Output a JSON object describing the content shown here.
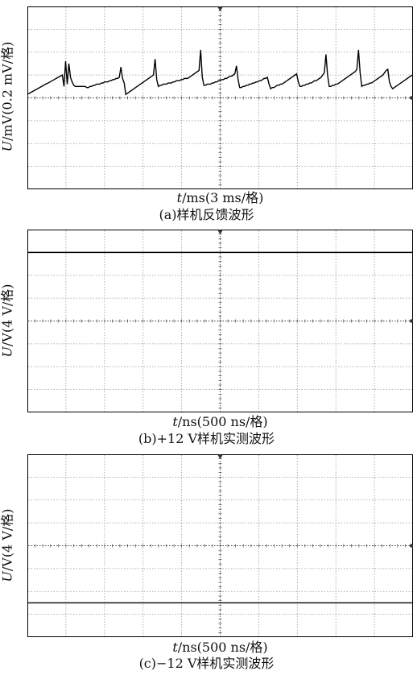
{
  "chart_data": [
    {
      "type": "line",
      "ylabel_var": "U",
      "ylabel_rest": "/mV(0.2 mV/格)",
      "xlabel_var": "t",
      "xlabel_rest": "/ms(3 ms/格)",
      "caption": "(a)样机反馈波形",
      "grid": true,
      "divisions": {
        "x": 10,
        "y": 8
      },
      "baseline_div": 4,
      "series": [
        {
          "values": [
            0.17,
            0.21,
            0.25,
            0.29,
            0.33,
            0.37,
            0.41,
            0.45,
            0.49,
            0.53,
            0.57,
            0.61,
            0.64,
            0.68,
            0.72,
            0.76,
            0.8,
            0.84,
            0.88,
            0.92,
            0.96,
            1.0,
            0.5,
            1.6,
            0.6,
            1.5,
            0.9,
            0.7,
            0.55,
            0.5,
            0.5,
            0.5,
            0.5,
            0.5,
            0.5,
            0.5,
            0.45,
            0.45,
            0.5,
            0.5,
            0.55,
            0.55,
            0.6,
            0.6,
            0.6,
            0.65,
            0.65,
            0.7,
            0.7,
            0.7,
            0.75,
            0.75,
            0.8,
            0.8,
            0.85,
            0.85,
            0.9,
            1.35,
            0.85,
            0.65,
            0.15,
            0.2,
            0.25,
            0.3,
            0.35,
            0.4,
            0.45,
            0.5,
            0.55,
            0.6,
            0.65,
            0.7,
            0.75,
            0.8,
            0.85,
            0.9,
            0.95,
            1.0,
            1.7,
            0.8,
            0.5,
            0.55,
            0.55,
            0.6,
            0.6,
            0.6,
            0.65,
            0.65,
            0.65,
            0.7,
            0.7,
            0.75,
            0.75,
            0.75,
            0.8,
            0.8,
            0.85,
            0.85,
            0.85,
            0.9,
            0.95,
            1.0,
            1.05,
            1.1,
            1.15,
            1.2,
            2.1,
            0.9,
            0.55,
            0.55,
            0.6,
            0.6,
            0.6,
            0.65,
            0.65,
            0.7,
            0.7,
            0.75,
            0.75,
            0.8,
            0.8,
            0.85,
            0.85,
            0.9,
            0.95,
            0.95,
            1.0,
            1.05,
            1.4,
            0.8,
            0.45,
            0.45,
            0.5,
            0.5,
            0.55,
            0.55,
            0.6,
            0.6,
            0.65,
            0.65,
            0.7,
            0.7,
            0.75,
            0.75,
            0.8,
            0.85,
            0.85,
            0.9,
            0.6,
            0.4,
            0.45,
            0.45,
            0.5,
            0.55,
            0.55,
            0.6,
            0.6,
            0.65,
            0.7,
            0.75,
            0.8,
            0.85,
            0.9,
            0.95,
            1.0,
            1.05,
            0.7,
            0.5,
            0.5,
            0.55,
            0.55,
            0.6,
            0.6,
            0.65,
            0.65,
            0.7,
            0.75,
            0.75,
            0.8,
            0.85,
            0.9,
            1.0,
            1.1,
            1.9,
            1.0,
            0.5,
            0.5,
            0.55,
            0.55,
            0.6,
            0.6,
            0.65,
            0.7,
            0.75,
            0.8,
            0.85,
            0.9,
            0.95,
            1.0,
            1.05,
            1.1,
            1.15,
            1.25,
            2.1,
            1.1,
            0.5,
            0.55,
            0.55,
            0.6,
            0.6,
            0.65,
            0.65,
            0.7,
            0.75,
            0.8,
            0.85,
            0.9,
            0.95,
            1.0,
            1.1,
            1.2,
            1.25,
            0.7,
            0.5,
            0.4,
            0.45,
            0.5,
            0.55,
            0.6,
            0.65,
            0.7,
            0.75,
            0.8,
            0.85,
            0.9,
            0.95,
            1.0
          ]
        }
      ]
    },
    {
      "type": "line",
      "ylabel_var": "U",
      "ylabel_rest": "/V(4 V/格)",
      "xlabel_var": "t",
      "xlabel_rest": "/ns(500 ns/格)",
      "caption": "(b)+12 V样机实测波形",
      "grid": true,
      "divisions": {
        "x": 10,
        "y": 8
      },
      "baseline_div": 4,
      "series": [
        {
          "values": [
            3.0,
            3.0
          ]
        }
      ]
    },
    {
      "type": "line",
      "ylabel_var": "U",
      "ylabel_rest": "/V(4 V/格)",
      "xlabel_var": "t",
      "xlabel_rest": "/ns(500 ns/格)",
      "caption": "(c)−12 V样机实测波形",
      "grid": true,
      "divisions": {
        "x": 10,
        "y": 8
      },
      "baseline_div": 4,
      "series": [
        {
          "values": [
            -2.5,
            -2.5
          ]
        }
      ]
    }
  ]
}
